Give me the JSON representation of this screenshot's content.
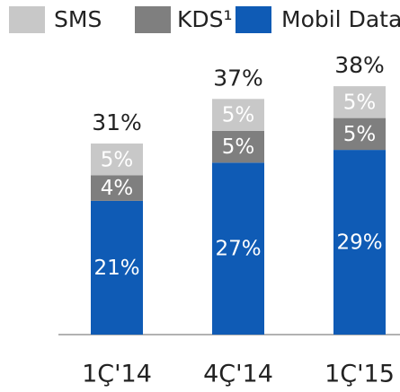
{
  "chart_data": {
    "type": "stacked_bar",
    "categories": [
      "1Ç'14",
      "4Ç'14",
      "1Ç'15"
    ],
    "series": [
      {
        "name": "Mobil Data",
        "color": "#0f5bb5",
        "values": [
          21,
          27,
          29
        ],
        "value_labels": [
          "21%",
          "27%",
          "29%"
        ]
      },
      {
        "name": "KDS¹",
        "color": "#7f7f7f",
        "values": [
          4,
          5,
          5
        ],
        "value_labels": [
          "4%",
          "5%",
          "5%"
        ]
      },
      {
        "name": "SMS",
        "color": "#c8c8c8",
        "values": [
          5,
          5,
          5
        ],
        "value_labels": [
          "5%",
          "5%",
          "5%"
        ]
      }
    ],
    "totals": [
      31,
      37,
      38
    ],
    "total_labels": [
      "31%",
      "37%",
      "38%"
    ]
  }
}
